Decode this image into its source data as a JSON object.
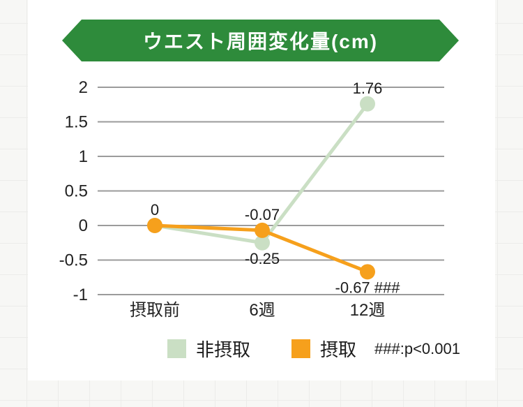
{
  "banner": {
    "color": "#2e8b3b"
  },
  "chart_data": {
    "type": "line",
    "title": "ウエスト周囲変化量(cm)",
    "categories": [
      "摂取前",
      "6週",
      "12週"
    ],
    "series": [
      {
        "name": "非摂取",
        "color": "#cadfc4",
        "values": [
          0,
          -0.25,
          1.76
        ],
        "point_labels": [
          {
            "text": "",
            "position": "above"
          },
          {
            "text": "-0.25",
            "position": "below"
          },
          {
            "text": "1.76",
            "position": "above"
          }
        ]
      },
      {
        "name": "摂取",
        "color": "#f6a01c",
        "values": [
          0,
          -0.07,
          -0.67
        ],
        "point_labels": [
          {
            "text": "0",
            "position": "above"
          },
          {
            "text": "-0.07",
            "position": "above"
          },
          {
            "text": "-0.67 ###",
            "position": "below"
          }
        ]
      }
    ],
    "yticks": [
      2,
      1.5,
      1,
      0.5,
      0,
      -0.5,
      -1
    ],
    "ytick_labels": [
      "2",
      "1.5",
      "1",
      "0.5",
      "0",
      "-0.5",
      "-1"
    ],
    "ylim": [
      -1,
      2
    ],
    "grid": true,
    "gridline_color": "#9b9b9b",
    "legend_position": "bottom",
    "annotation": "###:p<0.001"
  }
}
